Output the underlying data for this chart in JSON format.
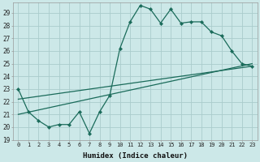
{
  "xlabel": "Humidex (Indice chaleur)",
  "bg_color": "#cce8e8",
  "grid_color": "#aacccc",
  "line_color": "#1a6b5a",
  "xlim": [
    -0.5,
    23.5
  ],
  "ylim": [
    19,
    29.8
  ],
  "yticks": [
    19,
    20,
    21,
    22,
    23,
    24,
    25,
    26,
    27,
    28,
    29
  ],
  "xticks": [
    0,
    1,
    2,
    3,
    4,
    5,
    6,
    7,
    8,
    9,
    10,
    11,
    12,
    13,
    14,
    15,
    16,
    17,
    18,
    19,
    20,
    21,
    22,
    23
  ],
  "line1_x": [
    0,
    1,
    2,
    3,
    4,
    5,
    6,
    7,
    8,
    9,
    10,
    11,
    12,
    13,
    14,
    15,
    16,
    17,
    18,
    19,
    20,
    21,
    22,
    23
  ],
  "line1_y": [
    23.0,
    21.2,
    20.5,
    20.0,
    20.2,
    20.2,
    21.2,
    19.5,
    21.2,
    22.5,
    26.2,
    28.3,
    29.6,
    29.3,
    28.2,
    29.3,
    28.2,
    28.3,
    28.3,
    27.5,
    27.2,
    26.0,
    25.0,
    24.8
  ],
  "line2_x": [
    0,
    23
  ],
  "line2_y": [
    21.0,
    25.0
  ],
  "line3_x": [
    0,
    23
  ],
  "line3_y": [
    22.2,
    24.8
  ]
}
